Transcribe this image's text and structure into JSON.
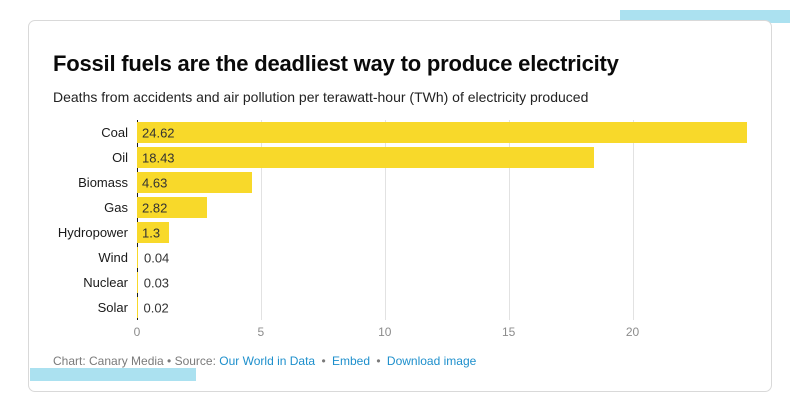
{
  "card": {
    "title": "Fossil fuels are the deadliest way to produce electricity",
    "subtitle": "Deaths from accidents and air pollution per terawatt-hour (TWh) of electricity produced"
  },
  "chart_data": {
    "type": "bar",
    "orientation": "horizontal",
    "title": "Fossil fuels are the deadliest way to produce electricity",
    "subtitle": "Deaths from accidents and air pollution per terawatt-hour (TWh) of electricity produced",
    "categories": [
      "Coal",
      "Oil",
      "Biomass",
      "Gas",
      "Hydropower",
      "Wind",
      "Nuclear",
      "Solar"
    ],
    "values": [
      24.62,
      18.43,
      4.63,
      2.82,
      1.3,
      0.04,
      0.03,
      0.02
    ],
    "value_labels": [
      "24.62",
      "18.43",
      "4.63",
      "2.82",
      "1.3",
      "0.04",
      "0.03",
      "0.02"
    ],
    "xlabel": "",
    "ylabel": "",
    "xticks": [
      0,
      5,
      10,
      15,
      20
    ],
    "xlim": [
      0,
      24.62
    ],
    "grid": true,
    "legend": false
  },
  "footer": {
    "prefix": "Chart: Canary Media • Source:",
    "source_link": "Our World in Data",
    "separator": "•",
    "embed_link": "Embed",
    "download_link": "Download image"
  },
  "colors": {
    "bar": "#F8D92A",
    "accent": "#ABE1F0",
    "link": "#1D8FCC",
    "axis_line": "#1a1a1a",
    "gridline": "#e2e2e2"
  }
}
